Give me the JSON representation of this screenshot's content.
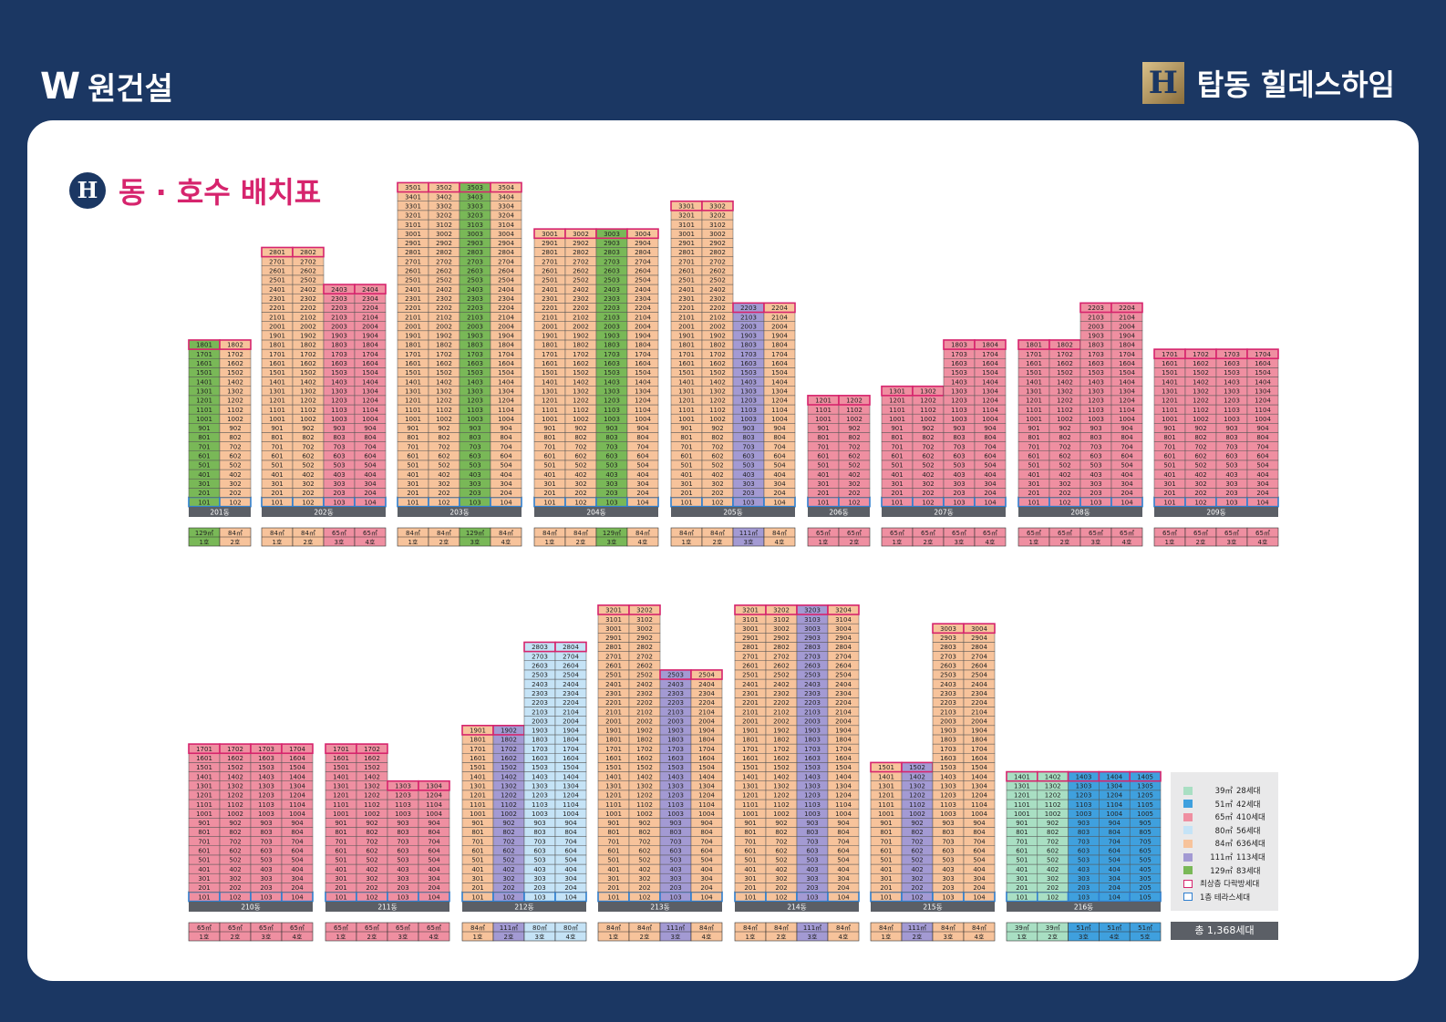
{
  "header": {
    "company_logo": "W",
    "company": "원건설",
    "project_logo": "H",
    "project": "탑동 힐데스하임"
  },
  "title": {
    "icon": "hillstate-h-icon",
    "text": "동 · 호수 배치표"
  },
  "colors": {
    "39": "#a9dfc3",
    "51": "#3fa0de",
    "65": "#ef8fa1",
    "80": "#c5e3f6",
    "84": "#f7c39b",
    "111": "#a39ad3",
    "129": "#79b857",
    "top_border": "#d6246d",
    "terrace_border": "#2f7fcf",
    "label_bar": "#5b5f66"
  },
  "chart_data": {
    "type": "table",
    "buildings": [
      {
        "dong": "201동",
        "top": 18,
        "types": [
          "129㎡",
          "84㎡"
        ],
        "lines": [
          "1호",
          "2호"
        ]
      },
      {
        "dong": "202동",
        "tops": [
          28,
          28,
          24,
          24
        ],
        "types": [
          "84㎡",
          "84㎡",
          "65㎡",
          "65㎡"
        ],
        "lines": [
          "1호",
          "2호",
          "3호",
          "4호"
        ]
      },
      {
        "dong": "203동",
        "top": 35,
        "types": [
          "84㎡",
          "84㎡",
          "129㎡",
          "84㎡"
        ],
        "lines": [
          "1호",
          "2호",
          "3호",
          "4호"
        ]
      },
      {
        "dong": "204동",
        "top": 30,
        "types": [
          "84㎡",
          "84㎡",
          "129㎡",
          "84㎡"
        ],
        "lines": [
          "1호",
          "2호",
          "3호",
          "4호"
        ]
      },
      {
        "dong": "205동",
        "tops": [
          33,
          33,
          22,
          22
        ],
        "types": [
          "84㎡",
          "84㎡",
          "111㎡",
          "84㎡"
        ],
        "lines": [
          "1호",
          "2호",
          "3호",
          "4호"
        ]
      },
      {
        "dong": "206동",
        "top": 12,
        "types": [
          "65㎡",
          "65㎡"
        ],
        "lines": [
          "1호",
          "2호"
        ]
      },
      {
        "dong": "207동",
        "tops": [
          13,
          13,
          18,
          18
        ],
        "types": [
          "65㎡",
          "65㎡",
          "65㎡",
          "65㎡"
        ],
        "lines": [
          "1호",
          "2호",
          "3호",
          "4호"
        ]
      },
      {
        "dong": "208동",
        "tops": [
          18,
          18,
          22,
          22
        ],
        "types": [
          "65㎡",
          "65㎡",
          "65㎡",
          "65㎡"
        ],
        "lines": [
          "1호",
          "2호",
          "3호",
          "4호"
        ]
      },
      {
        "dong": "209동",
        "top": 17,
        "types": [
          "65㎡",
          "65㎡",
          "65㎡",
          "65㎡"
        ],
        "lines": [
          "1호",
          "2호",
          "3호",
          "4호"
        ]
      },
      {
        "dong": "210동",
        "top": 17,
        "types": [
          "65㎡",
          "65㎡",
          "65㎡",
          "65㎡"
        ],
        "lines": [
          "1호",
          "2호",
          "3호",
          "4호"
        ]
      },
      {
        "dong": "211동",
        "tops": [
          17,
          17,
          13,
          13
        ],
        "types": [
          "65㎡",
          "65㎡",
          "65㎡",
          "65㎡"
        ],
        "lines": [
          "1호",
          "2호",
          "3호",
          "4호"
        ]
      },
      {
        "dong": "212동",
        "tops": [
          19,
          19,
          28,
          28
        ],
        "types": [
          "84㎡",
          "111㎡",
          "80㎡",
          "80㎡"
        ],
        "lines": [
          "1호",
          "2호",
          "3호",
          "4호"
        ]
      },
      {
        "dong": "213동",
        "tops": [
          32,
          32,
          25,
          25
        ],
        "types": [
          "84㎡",
          "84㎡",
          "111㎡",
          "84㎡"
        ],
        "lines": [
          "1호",
          "2호",
          "3호",
          "4호"
        ]
      },
      {
        "dong": "214동",
        "top": 32,
        "types": [
          "84㎡",
          "84㎡",
          "111㎡",
          "84㎡"
        ],
        "lines": [
          "1호",
          "2호",
          "3호",
          "4호"
        ]
      },
      {
        "dong": "215동",
        "tops": [
          15,
          15,
          30,
          30
        ],
        "types": [
          "84㎡",
          "111㎡",
          "84㎡",
          "84㎡"
        ],
        "lines": [
          "1호",
          "2호",
          "3호",
          "4호"
        ]
      },
      {
        "dong": "216동",
        "top": 14,
        "types": [
          "39㎡",
          "39㎡",
          "51㎡",
          "51㎡",
          "51㎡"
        ],
        "lines": [
          "1호",
          "2호",
          "3호",
          "4호",
          "5호"
        ]
      }
    ],
    "legend": [
      {
        "color": "#a9dfc3",
        "label": "39㎡",
        "count": "28세대"
      },
      {
        "color": "#3fa0de",
        "label": "51㎡",
        "count": "42세대"
      },
      {
        "color": "#ef8fa1",
        "label": "65㎡",
        "count": "410세대"
      },
      {
        "color": "#c5e3f6",
        "label": "80㎡",
        "count": "56세대"
      },
      {
        "color": "#f7c39b",
        "label": "84㎡",
        "count": "636세대"
      },
      {
        "color": "#a39ad3",
        "label": "111㎡",
        "count": "113세대"
      },
      {
        "color": "#79b857",
        "label": "129㎡",
        "count": "83세대"
      },
      {
        "color": "#ffffff",
        "border": "#d6246d",
        "label": "최상층 다락방세대",
        "count": ""
      },
      {
        "color": "#ffffff",
        "border": "#2f7fcf",
        "label": "1층 테라스세대",
        "count": ""
      }
    ],
    "total": "총 1,368세대"
  }
}
